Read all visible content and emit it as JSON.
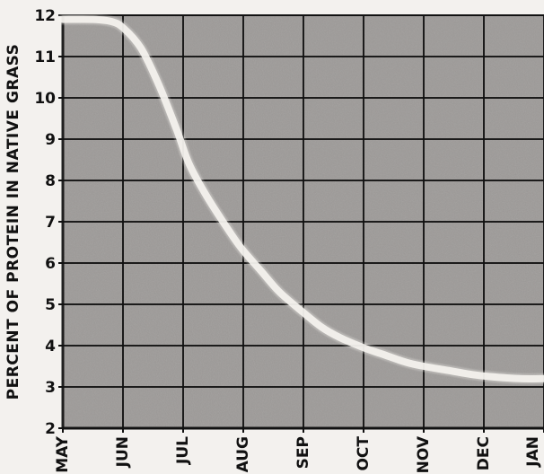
{
  "chart_data": {
    "type": "line",
    "title": "",
    "xlabel": "",
    "ylabel": "PERCENT OF PROTEIN IN NATIVE GRASS",
    "categories": [
      "MAY",
      "JUN",
      "JUL",
      "AUG",
      "SEP",
      "OCT",
      "NOV",
      "DEC",
      "JAN"
    ],
    "x_ticks": [
      "MAY",
      "JUN",
      "JUL",
      "AUG",
      "SEP",
      "OCT",
      "NOV",
      "DEC",
      "JAN"
    ],
    "y_ticks": [
      2,
      3,
      4,
      5,
      6,
      7,
      8,
      9,
      10,
      11,
      12
    ],
    "ylim": [
      2,
      12
    ],
    "grid": true,
    "series": [
      {
        "x": [
          0,
          0.5,
          0.8,
          1,
          1.3,
          1.6,
          1.9,
          2.1,
          2.4,
          2.8,
          3.0,
          3.3,
          3.6,
          4.0,
          4.3,
          4.6,
          5.0,
          5.3,
          5.7,
          6.0,
          6.4,
          6.8,
          7.1,
          7.6,
          8.0
        ],
        "values": [
          11.9,
          11.9,
          11.85,
          11.7,
          11.2,
          10.3,
          9.2,
          8.4,
          7.6,
          6.7,
          6.3,
          5.8,
          5.3,
          4.8,
          4.45,
          4.2,
          3.95,
          3.8,
          3.6,
          3.5,
          3.4,
          3.3,
          3.25,
          3.2,
          3.2
        ]
      }
    ],
    "colors": {
      "background": "#9d9a98",
      "grid": "#111111",
      "line": "#f5f3ef",
      "page": "#f3f1ee"
    }
  }
}
